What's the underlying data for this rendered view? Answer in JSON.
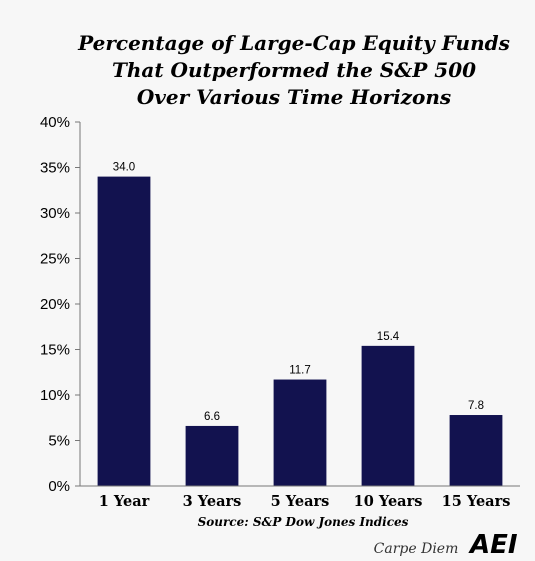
{
  "chart_data": {
    "type": "bar",
    "title": [
      "Percentage of Large-Cap Equity Funds",
      "That Outperformed the S&P 500",
      "Over Various Time Horizons"
    ],
    "categories": [
      "1 Year",
      "3 Years",
      "5 Years",
      "10 Years",
      "15 Years"
    ],
    "values": [
      34.0,
      6.6,
      11.7,
      15.4,
      7.8
    ],
    "data_labels": [
      "34.0",
      "6.6",
      "11.7",
      "15.4",
      "7.8"
    ],
    "ylim": [
      0,
      40
    ],
    "yticks": [
      0,
      5,
      10,
      15,
      20,
      25,
      30,
      35,
      40
    ],
    "ytick_labels": [
      "0%",
      "5%",
      "10%",
      "15%",
      "20%",
      "25%",
      "30%",
      "35%",
      "40%"
    ],
    "xlabel": "",
    "ylabel": "",
    "grid": false,
    "bar_color": "#12124f",
    "source": "Source: S&P Dow Jones Indices"
  },
  "branding": {
    "blog_name": "Carpe Diem",
    "logo_text": "AEI"
  }
}
